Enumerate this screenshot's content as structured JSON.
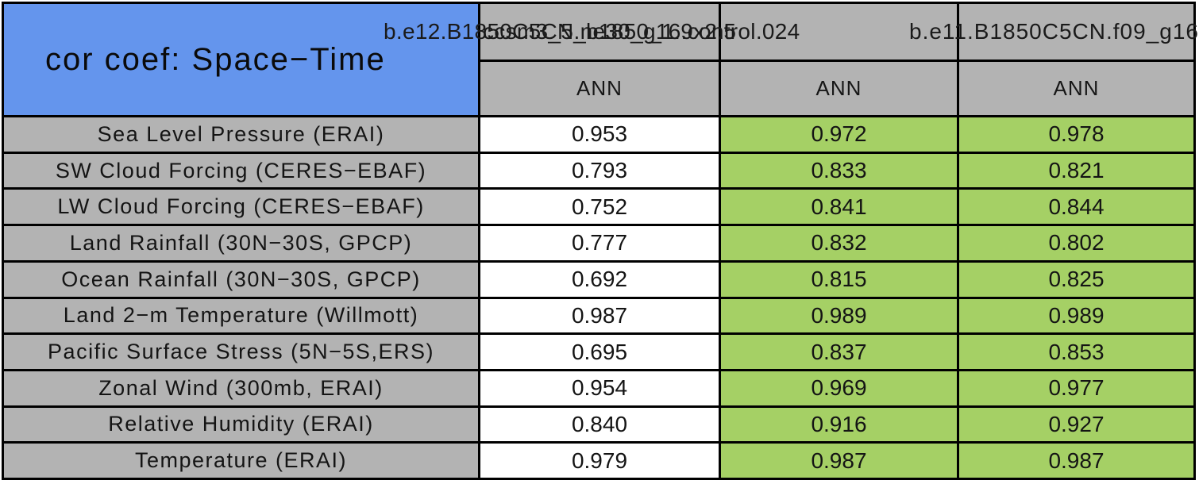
{
  "table_title": "cor coef: Space−Time",
  "header": {
    "case_names": [
      "b.e12.B1850C5CN.ne30_g16.control.024",
      "ccsm3_5_b1850_1.9x2.5",
      "b.e11.B1850C5CN.f09_g16"
    ],
    "season_labels": [
      "ANN",
      "ANN",
      "ANN"
    ]
  },
  "rows": [
    {
      "label": "Sea Level Pressure (ERAI)",
      "values": [
        "0.953",
        "0.972",
        "0.978"
      ]
    },
    {
      "label": "SW Cloud Forcing (CERES−EBAF)",
      "values": [
        "0.793",
        "0.833",
        "0.821"
      ]
    },
    {
      "label": "LW Cloud Forcing (CERES−EBAF)",
      "values": [
        "0.752",
        "0.841",
        "0.844"
      ]
    },
    {
      "label": "Land Rainfall (30N−30S, GPCP)",
      "values": [
        "0.777",
        "0.832",
        "0.802"
      ]
    },
    {
      "label": "Ocean Rainfall (30N−30S, GPCP)",
      "values": [
        "0.692",
        "0.815",
        "0.825"
      ]
    },
    {
      "label": "Land 2−m Temperature (Willmott)",
      "values": [
        "0.987",
        "0.989",
        "0.989"
      ]
    },
    {
      "label": "Pacific Surface Stress (5N−5S,ERS)",
      "values": [
        "0.695",
        "0.837",
        "0.853"
      ]
    },
    {
      "label": "Zonal Wind (300mb, ERAI)",
      "values": [
        "0.954",
        "0.969",
        "0.977"
      ]
    },
    {
      "label": "Relative Humidity (ERAI)",
      "values": [
        "0.840",
        "0.916",
        "0.927"
      ]
    },
    {
      "label": "Temperature (ERAI)",
      "values": [
        "0.979",
        "0.987",
        "0.987"
      ]
    }
  ],
  "colors": {
    "title_cell_blue": "#6495ed",
    "header_gray": "#b3b3b3",
    "test_column_white": "#ffffff",
    "highlight_green": "#a5d065",
    "grid_border": "#000000"
  },
  "chart_data": {
    "type": "table",
    "title": "cor coef: Space−Time",
    "column_headers": [
      "b.e12.B1850C5CN.ne30_g16.control.024",
      "ccsm3_5_b1850_1.9x2.5",
      "b.e11.B1850C5CN.f09_g16"
    ],
    "sub_headers": [
      "ANN",
      "ANN",
      "ANN"
    ],
    "row_labels": [
      "Sea Level Pressure (ERAI)",
      "SW Cloud Forcing (CERES−EBAF)",
      "LW Cloud Forcing (CERES−EBAF)",
      "Land Rainfall (30N−30S, GPCP)",
      "Ocean Rainfall (30N−30S, GPCP)",
      "Land 2−m Temperature (Willmott)",
      "Pacific Surface Stress (5N−5S,ERS)",
      "Zonal Wind (300mb, ERAI)",
      "Relative Humidity (ERAI)",
      "Temperature (ERAI)"
    ],
    "values": [
      [
        0.953,
        0.972,
        0.978
      ],
      [
        0.793,
        0.833,
        0.821
      ],
      [
        0.752,
        0.841,
        0.844
      ],
      [
        0.777,
        0.832,
        0.802
      ],
      [
        0.692,
        0.815,
        0.825
      ],
      [
        0.987,
        0.989,
        0.989
      ],
      [
        0.695,
        0.837,
        0.853
      ],
      [
        0.954,
        0.969,
        0.977
      ],
      [
        0.84,
        0.916,
        0.927
      ],
      [
        0.979,
        0.987,
        0.987
      ]
    ],
    "highlighted_columns_green": [
      2,
      3
    ],
    "legend_position": "none",
    "grid": true
  }
}
